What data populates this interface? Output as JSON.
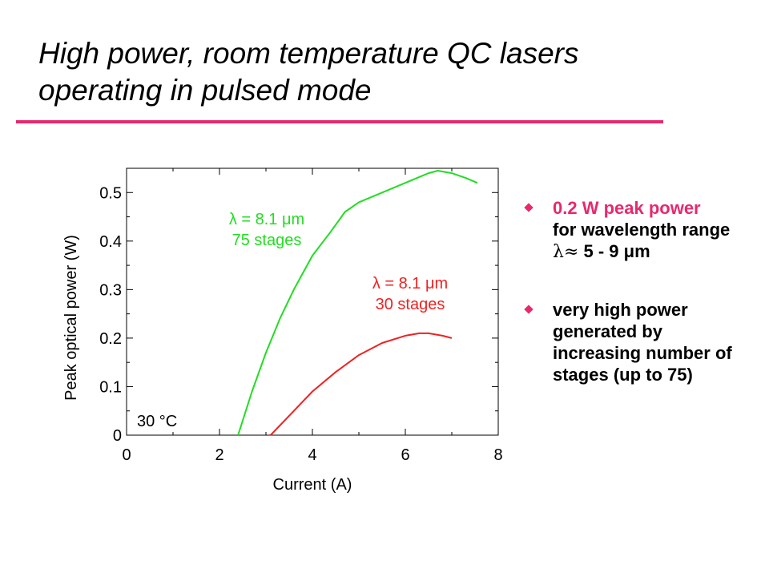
{
  "slide": {
    "title_line1": "High power, room temperature QC lasers",
    "title_line2": "operating in pulsed mode",
    "accent_color": "#e8286e"
  },
  "bullets": [
    {
      "highlight": "0.2 W peak power",
      "line2": "for wavelength range",
      "line3_symbol": "λ≈",
      "line3_text": " 5 - 9 μm"
    },
    {
      "line1": "very high power",
      "line2": "generated by",
      "line3": "increasing number of",
      "line4": "stages (up to 75)"
    }
  ],
  "chart_data": {
    "type": "line",
    "xlabel": "Current  (A)",
    "ylabel": "Peak optical power  (W)",
    "xlim": [
      0,
      8
    ],
    "ylim": [
      0,
      0.55
    ],
    "xticks": [
      "0",
      "2",
      "4",
      "6",
      "8"
    ],
    "yticks": [
      "0",
      "0.1",
      "0.2",
      "0.3",
      "0.4",
      "0.5"
    ],
    "grid": false,
    "annotation": "30 °C",
    "series": [
      {
        "name": "λ = 8.1 μm",
        "sublabel": "75 stages",
        "color": "#22dd22",
        "x": [
          2.4,
          2.7,
          3.0,
          3.3,
          3.6,
          4.0,
          4.4,
          4.7,
          5.0,
          5.5,
          6.0,
          6.5,
          6.7,
          7.0,
          7.3,
          7.55
        ],
        "y": [
          0.0,
          0.09,
          0.17,
          0.24,
          0.3,
          0.37,
          0.42,
          0.46,
          0.48,
          0.5,
          0.52,
          0.54,
          0.545,
          0.54,
          0.53,
          0.52
        ]
      },
      {
        "name": "λ = 8.1 μm",
        "sublabel": "30 stages",
        "color": "#ee2222",
        "x": [
          3.1,
          3.5,
          4.0,
          4.5,
          5.0,
          5.5,
          6.0,
          6.3,
          6.5,
          6.8,
          7.0
        ],
        "y": [
          0.0,
          0.04,
          0.09,
          0.13,
          0.165,
          0.19,
          0.205,
          0.21,
          0.21,
          0.205,
          0.2
        ]
      }
    ]
  }
}
